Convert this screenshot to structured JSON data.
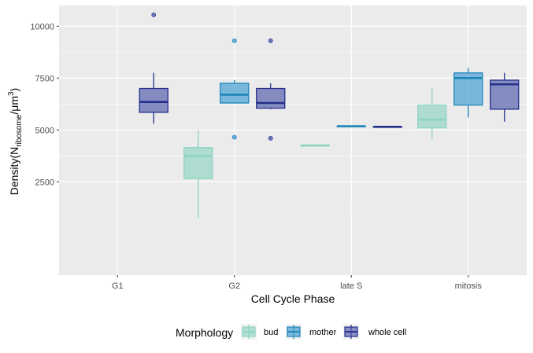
{
  "chart_data": {
    "type": "boxplot",
    "xlabel": "Cell Cycle Phase",
    "ylabel": {
      "main": "Density(N",
      "subscript": "ribosome",
      "middle": "/μm",
      "superscript": "3",
      "end": ")"
    },
    "categories": [
      "G1",
      "G2",
      "late S",
      "mitosis"
    ],
    "yticks": [
      "2500",
      "5000",
      "7500",
      "10000"
    ],
    "ytick_values": [
      2500,
      5000,
      7500,
      10000
    ],
    "ylim": [
      -2000,
      11000
    ],
    "grid": true,
    "legend": {
      "title": "Morphology",
      "position": "bottom",
      "entries": [
        "bud",
        "mother",
        "whole cell"
      ]
    },
    "series": [
      {
        "name": "bud",
        "fill": "#8fd4c1",
        "stroke": "#8fd4c1",
        "boxes": [
          null,
          {
            "category": "G2",
            "whisker_low": 750,
            "q1": 2650,
            "median": 3750,
            "q3": 4150,
            "whisker_high": 5000,
            "outliers": []
          },
          {
            "category": "late S",
            "whisker_low": 4250,
            "q1": 4250,
            "median": 4250,
            "q3": 4250,
            "whisker_high": 4250,
            "outliers": []
          },
          {
            "category": "mitosis",
            "whisker_low": 4550,
            "q1": 5100,
            "median": 5500,
            "q3": 6200,
            "whisker_high": 7000,
            "outliers": []
          }
        ]
      },
      {
        "name": "mother",
        "fill": "#3c9bd1",
        "stroke": "#1f84bb",
        "boxes": [
          null,
          {
            "category": "G2",
            "whisker_low": 6300,
            "q1": 6300,
            "median": 6700,
            "q3": 7250,
            "whisker_high": 7400,
            "outliers": [
              9300,
              4650
            ]
          },
          {
            "category": "late S",
            "whisker_low": 5180,
            "q1": 5180,
            "median": 5180,
            "q3": 5180,
            "whisker_high": 5180,
            "outliers": []
          },
          {
            "category": "mitosis",
            "whisker_low": 5600,
            "q1": 6200,
            "median": 7500,
            "q3": 7750,
            "whisker_high": 8000,
            "outliers": []
          }
        ]
      },
      {
        "name": "whole cell",
        "fill": "#4d57aa",
        "stroke": "#252f8c",
        "boxes": [
          {
            "category": "G1",
            "whisker_low": 5300,
            "q1": 5850,
            "median": 6350,
            "q3": 7000,
            "whisker_high": 7750,
            "outliers": [
              10550
            ]
          },
          {
            "category": "G2",
            "whisker_low": 6000,
            "q1": 6050,
            "median": 6300,
            "q3": 7000,
            "whisker_high": 7250,
            "outliers": [
              9300,
              4600
            ]
          },
          {
            "category": "late S",
            "whisker_low": 5150,
            "q1": 5150,
            "median": 5150,
            "q3": 5150,
            "whisker_high": 5150,
            "outliers": []
          },
          {
            "category": "mitosis",
            "whisker_low": 5400,
            "q1": 6000,
            "median": 7200,
            "q3": 7400,
            "whisker_high": 7750,
            "outliers": []
          }
        ]
      }
    ]
  }
}
